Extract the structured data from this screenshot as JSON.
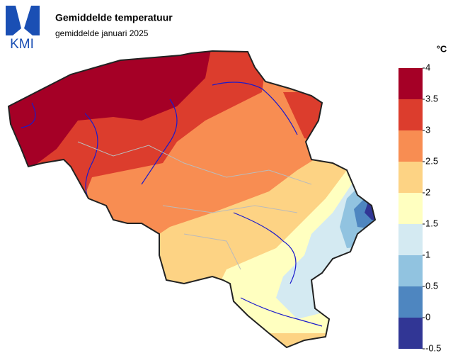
{
  "header": {
    "logo": "KMI",
    "title": "Gemiddelde temperatuur",
    "subtitle": "gemiddelde januari 2025"
  },
  "legend": {
    "unit": "°C",
    "ticks": [
      4,
      3.5,
      3,
      2.5,
      2,
      1.5,
      1,
      0.5,
      0,
      -0.5
    ],
    "colors": [
      "#a50026",
      "#dc3d2d",
      "#f88d52",
      "#fdd384",
      "#ffffc0",
      "#d4eaf2",
      "#91c3e0",
      "#4e86c0",
      "#313695"
    ]
  }
}
